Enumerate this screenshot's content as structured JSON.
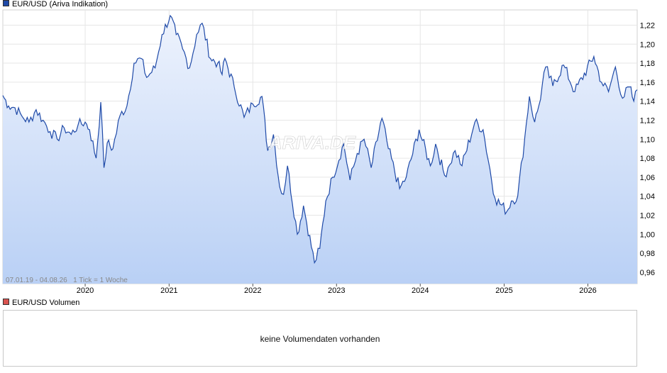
{
  "legend": {
    "price_label": "EUR/USD (Ariva Indikation)",
    "price_color": "#1f4aa8",
    "volume_label": "EUR/USD Volumen",
    "volume_color": "#d9534f"
  },
  "watermark": "ARIVA.DE",
  "footer_note": "07.01.19 - 04.08.26   1 Tick = 1 Woche",
  "volume_panel": {
    "message": "keine Volumendaten vorhanden"
  },
  "colors": {
    "line": "#1f4aa8",
    "fill_top": "#eef3fd",
    "fill_bottom": "#b9d0f5",
    "grid": "#e6e6e6"
  },
  "chart_data": {
    "type": "area",
    "title": "",
    "xlabel": "",
    "ylabel": "",
    "x_tick_labels": [
      "2020",
      "2021",
      "2022",
      "2023",
      "2024",
      "2025",
      "2026"
    ],
    "y_tick_labels": [
      "0,96",
      "0,98",
      "1,00",
      "1,02",
      "1,04",
      "1,06",
      "1,08",
      "1,10",
      "1,12",
      "1,14",
      "1,16",
      "1,18",
      "1,20",
      "1,22"
    ],
    "y_ticks": [
      0.96,
      0.98,
      1.0,
      1.02,
      1.04,
      1.06,
      1.08,
      1.1,
      1.12,
      1.14,
      1.16,
      1.18,
      1.2,
      1.22
    ],
    "x_ticks": [
      "2020-01-01",
      "2021-01-01",
      "2022-01-01",
      "2023-01-01",
      "2024-01-01",
      "2025-01-01",
      "2026-01-01"
    ],
    "xlim": [
      "2019-01-07",
      "2026-08-04"
    ],
    "ylim": [
      0.948,
      1.236
    ],
    "grid": true,
    "series": [
      {
        "name": "EUR/USD (Ariva Indikation)",
        "points": [
          [
            "2019-01-07",
            1.146
          ],
          [
            "2019-02-01",
            1.135
          ],
          [
            "2019-03-01",
            1.133
          ],
          [
            "2019-04-01",
            1.124
          ],
          [
            "2019-05-01",
            1.118
          ],
          [
            "2019-06-01",
            1.131
          ],
          [
            "2019-07-01",
            1.12
          ],
          [
            "2019-08-01",
            1.108
          ],
          [
            "2019-09-01",
            1.1
          ],
          [
            "2019-10-01",
            1.112
          ],
          [
            "2019-11-01",
            1.105
          ],
          [
            "2019-12-01",
            1.115
          ],
          [
            "2020-01-01",
            1.118
          ],
          [
            "2020-01-20",
            1.11
          ],
          [
            "2020-02-18",
            1.08
          ],
          [
            "2020-03-09",
            1.139
          ],
          [
            "2020-03-23",
            1.07
          ],
          [
            "2020-04-06",
            1.096
          ],
          [
            "2020-05-01",
            1.09
          ],
          [
            "2020-06-01",
            1.125
          ],
          [
            "2020-07-01",
            1.135
          ],
          [
            "2020-08-01",
            1.18
          ],
          [
            "2020-09-01",
            1.185
          ],
          [
            "2020-09-25",
            1.165
          ],
          [
            "2020-11-01",
            1.175
          ],
          [
            "2020-12-01",
            1.21
          ],
          [
            "2021-01-06",
            1.23
          ],
          [
            "2021-02-01",
            1.21
          ],
          [
            "2021-03-01",
            1.195
          ],
          [
            "2021-03-31",
            1.175
          ],
          [
            "2021-05-01",
            1.21
          ],
          [
            "2021-05-25",
            1.222
          ],
          [
            "2021-06-30",
            1.185
          ],
          [
            "2021-08-01",
            1.18
          ],
          [
            "2021-08-20",
            1.168
          ],
          [
            "2021-09-01",
            1.185
          ],
          [
            "2021-10-12",
            1.155
          ],
          [
            "2021-11-24",
            1.123
          ],
          [
            "2022-01-01",
            1.137
          ],
          [
            "2022-02-10",
            1.145
          ],
          [
            "2022-03-07",
            1.088
          ],
          [
            "2022-04-01",
            1.105
          ],
          [
            "2022-04-28",
            1.05
          ],
          [
            "2022-05-15",
            1.042
          ],
          [
            "2022-06-01",
            1.072
          ],
          [
            "2022-07-14",
            1.0
          ],
          [
            "2022-08-10",
            1.03
          ],
          [
            "2022-09-27",
            0.97
          ],
          [
            "2022-10-20",
            0.985
          ],
          [
            "2022-11-15",
            1.035
          ],
          [
            "2022-12-15",
            1.06
          ],
          [
            "2023-02-01",
            1.095
          ],
          [
            "2023-03-01",
            1.057
          ],
          [
            "2023-04-01",
            1.085
          ],
          [
            "2023-05-01",
            1.1
          ],
          [
            "2023-06-01",
            1.07
          ],
          [
            "2023-07-18",
            1.122
          ],
          [
            "2023-08-15",
            1.09
          ],
          [
            "2023-10-03",
            1.048
          ],
          [
            "2023-11-01",
            1.06
          ],
          [
            "2023-12-27",
            1.11
          ],
          [
            "2024-02-14",
            1.072
          ],
          [
            "2024-03-08",
            1.095
          ],
          [
            "2024-04-16",
            1.062
          ],
          [
            "2024-05-01",
            1.07
          ],
          [
            "2024-06-01",
            1.088
          ],
          [
            "2024-07-01",
            1.072
          ],
          [
            "2024-08-26",
            1.118
          ],
          [
            "2024-10-01",
            1.11
          ],
          [
            "2024-11-22",
            1.038
          ],
          [
            "2025-01-13",
            1.024
          ],
          [
            "2025-02-01",
            1.035
          ],
          [
            "2025-03-01",
            1.04
          ],
          [
            "2025-04-01",
            1.102
          ],
          [
            "2025-04-21",
            1.145
          ],
          [
            "2025-05-14",
            1.118
          ],
          [
            "2025-06-01",
            1.135
          ],
          [
            "2025-07-01",
            1.176
          ],
          [
            "2025-08-01",
            1.156
          ],
          [
            "2025-09-17",
            1.178
          ],
          [
            "2025-11-05",
            1.15
          ],
          [
            "2026-01-27",
            1.187
          ],
          [
            "2026-03-01",
            1.16
          ],
          [
            "2026-04-01",
            1.15
          ],
          [
            "2026-05-01",
            1.176
          ],
          [
            "2026-06-01",
            1.143
          ],
          [
            "2026-07-01",
            1.155
          ],
          [
            "2026-07-20",
            1.14
          ],
          [
            "2026-08-04",
            1.152
          ]
        ]
      }
    ]
  }
}
